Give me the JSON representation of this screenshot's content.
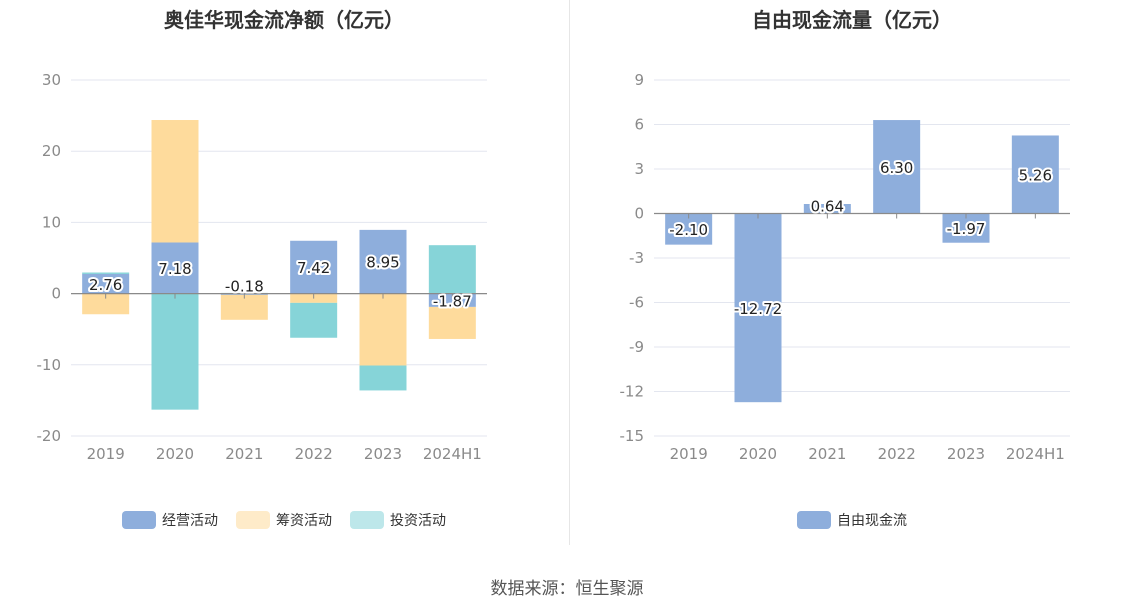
{
  "source_text": "数据来源：恒生聚源",
  "chart_data": [
    {
      "type": "bar",
      "stacked": true,
      "title": "奥佳华现金流净额（亿元）",
      "categories": [
        "2019",
        "2020",
        "2021",
        "2022",
        "2023",
        "2024H1"
      ],
      "ylim": [
        -20,
        30
      ],
      "yticks": [
        "30",
        "20",
        "10",
        "0",
        "-10",
        "-20"
      ],
      "grid": true,
      "legend_position": "bottom",
      "series": [
        {
          "name": "经营活动",
          "color": "#8eaedc",
          "values": [
            2.76,
            7.18,
            -0.18,
            7.42,
            8.95,
            -1.87
          ],
          "labels": [
            "2.76",
            "7.18",
            "-0.18",
            "7.42",
            "8.95",
            "-1.87"
          ]
        },
        {
          "name": "筹资活动",
          "color": "#fedb9c",
          "values": [
            -2.9,
            17.2,
            -3.5,
            -1.3,
            -10.1,
            -4.5
          ]
        },
        {
          "name": "投资活动",
          "color": "#86d4d8",
          "values": [
            0.2,
            -16.3,
            0.1,
            -4.9,
            -3.5,
            6.8
          ]
        }
      ]
    },
    {
      "type": "bar",
      "title": "自由现金流量（亿元）",
      "categories": [
        "2019",
        "2020",
        "2021",
        "2022",
        "2023",
        "2024H1"
      ],
      "ylim": [
        -15,
        9
      ],
      "yticks": [
        "9",
        "6",
        "3",
        "0",
        "-3",
        "-6",
        "-9",
        "-12",
        "-15"
      ],
      "grid": true,
      "legend_position": "bottom",
      "series": [
        {
          "name": "自由现金流",
          "color": "#8eaedc",
          "values": [
            -2.1,
            -12.72,
            0.64,
            6.3,
            -1.97,
            5.26
          ],
          "labels": [
            "-2.10",
            "-12.72",
            "0.64",
            "6.30",
            "-1.97",
            "5.26"
          ]
        }
      ]
    }
  ]
}
